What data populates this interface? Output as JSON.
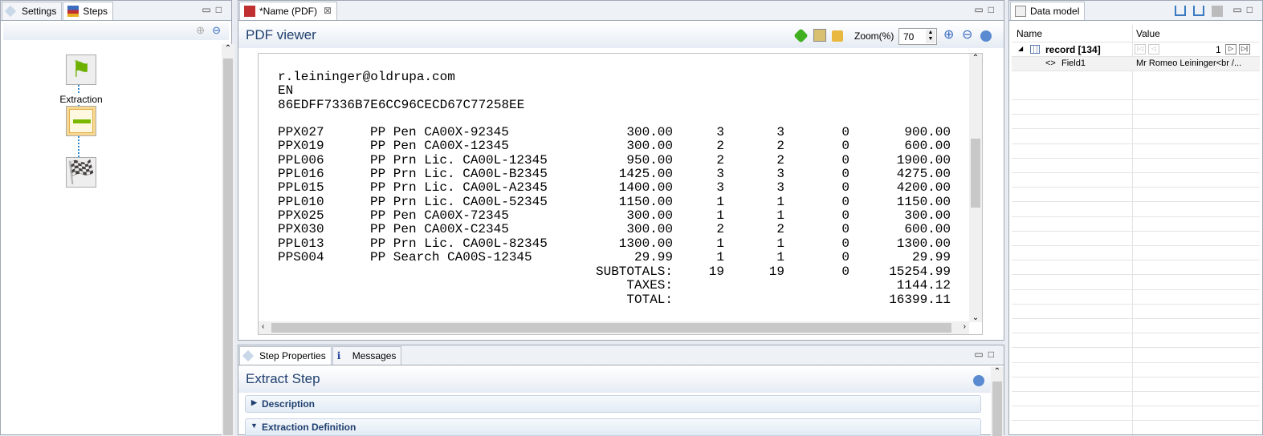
{
  "left_panel": {
    "tabs": [
      {
        "label": "Settings"
      },
      {
        "label": "Steps"
      }
    ],
    "steps": [
      {
        "label": "",
        "icon": "green-flag-icon"
      },
      {
        "label": "Extraction",
        "icon": "extract-table-icon"
      },
      {
        "label": "",
        "icon": "checkered-flag-icon"
      }
    ]
  },
  "editor": {
    "tab_label": "*Name (PDF)",
    "title": "PDF viewer",
    "zoom_label": "Zoom(%)",
    "zoom_value": "70",
    "header_lines": [
      "r.leininger@oldrupa.com",
      "EN",
      "86EDFF7336B7E6CC96CECD67C77258EE"
    ],
    "rows": [
      [
        "PPX027",
        "PP Pen CA00X-92345",
        "300.00",
        "3",
        "3",
        "0",
        "900.00"
      ],
      [
        "PPX019",
        "PP Pen CA00X-12345",
        "300.00",
        "2",
        "2",
        "0",
        "600.00"
      ],
      [
        "PPL006",
        "PP Prn Lic. CA00L-12345",
        "950.00",
        "2",
        "2",
        "0",
        "1900.00"
      ],
      [
        "PPL016",
        "PP Prn Lic. CA00L-B2345",
        "1425.00",
        "3",
        "3",
        "0",
        "4275.00"
      ],
      [
        "PPL015",
        "PP Prn Lic. CA00L-A2345",
        "1400.00",
        "3",
        "3",
        "0",
        "4200.00"
      ],
      [
        "PPL010",
        "PP Prn Lic. CA00L-52345",
        "1150.00",
        "1",
        "1",
        "0",
        "1150.00"
      ],
      [
        "PPX025",
        "PP Pen CA00X-72345",
        "300.00",
        "1",
        "1",
        "0",
        "300.00"
      ],
      [
        "PPX030",
        "PP Pen CA00X-C2345",
        "300.00",
        "2",
        "2",
        "0",
        "600.00"
      ],
      [
        "PPL013",
        "PP Prn Lic. CA00L-82345",
        "1300.00",
        "1",
        "1",
        "0",
        "1300.00"
      ],
      [
        "PPS004",
        "PP Search CA00S-12345",
        "29.99",
        "1",
        "1",
        "0",
        "29.99"
      ]
    ],
    "subtotals": {
      "label": "SUBTOTALS:",
      "q1": "19",
      "q2": "19",
      "q3": "0",
      "amount": "15254.99"
    },
    "taxes": {
      "label": "TAXES:",
      "amount": "1144.12"
    },
    "total": {
      "label": "TOTAL:",
      "amount": "16399.11"
    }
  },
  "bottom": {
    "tabs": [
      {
        "label": "Step Properties"
      },
      {
        "label": "Messages"
      }
    ],
    "title": "Extract Step",
    "sections": [
      {
        "label": "Description",
        "expanded": false
      },
      {
        "label": "Extraction Definition",
        "expanded": true
      }
    ]
  },
  "data_model": {
    "tab_label": "Data model",
    "col_name": "Name",
    "col_value": "Value",
    "record_label": "record [134]",
    "record_index": "1",
    "field_name": "Field1",
    "field_value": "Mr Romeo Leininger<br /..."
  }
}
